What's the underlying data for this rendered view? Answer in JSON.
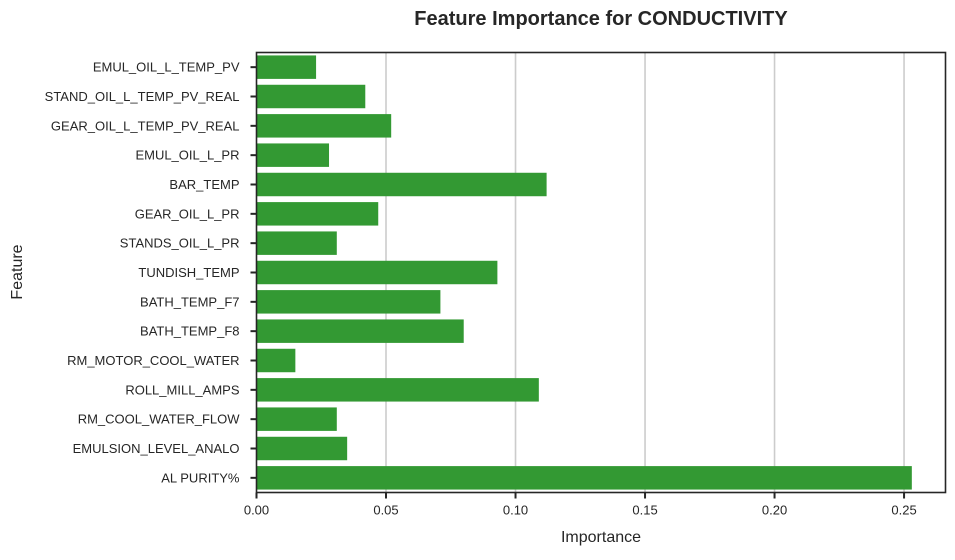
{
  "chart_data": {
    "type": "bar",
    "orientation": "horizontal",
    "title": "Feature Importance for CONDUCTIVITY",
    "xlabel": "Importance",
    "ylabel": "Feature",
    "xlim": [
      0,
      0.266
    ],
    "xticks": [
      0.0,
      0.05,
      0.1,
      0.15,
      0.2,
      0.25
    ],
    "xtick_labels": [
      "0.00",
      "0.05",
      "0.10",
      "0.15",
      "0.20",
      "0.25"
    ],
    "grid": "vertical",
    "bar_color": "#339933",
    "categories": [
      "EMUL_OIL_L_TEMP_PV",
      "STAND_OIL_L_TEMP_PV_REAL",
      "GEAR_OIL_L_TEMP_PV_REAL",
      "EMUL_OIL_L_PR",
      "BAR_TEMP",
      "GEAR_OIL_L_PR",
      "STANDS_OIL_L_PR",
      "TUNDISH_TEMP",
      "BATH_TEMP_F7",
      "BATH_TEMP_F8",
      "RM_MOTOR_COOL_WATER",
      "ROLL_MILL_AMPS",
      "RM_COOL_WATER_FLOW",
      "EMULSION_LEVEL_ANALO",
      "AL PURITY%"
    ],
    "values": [
      0.023,
      0.042,
      0.052,
      0.028,
      0.112,
      0.047,
      0.031,
      0.093,
      0.071,
      0.08,
      0.015,
      0.109,
      0.031,
      0.035,
      0.253
    ]
  }
}
